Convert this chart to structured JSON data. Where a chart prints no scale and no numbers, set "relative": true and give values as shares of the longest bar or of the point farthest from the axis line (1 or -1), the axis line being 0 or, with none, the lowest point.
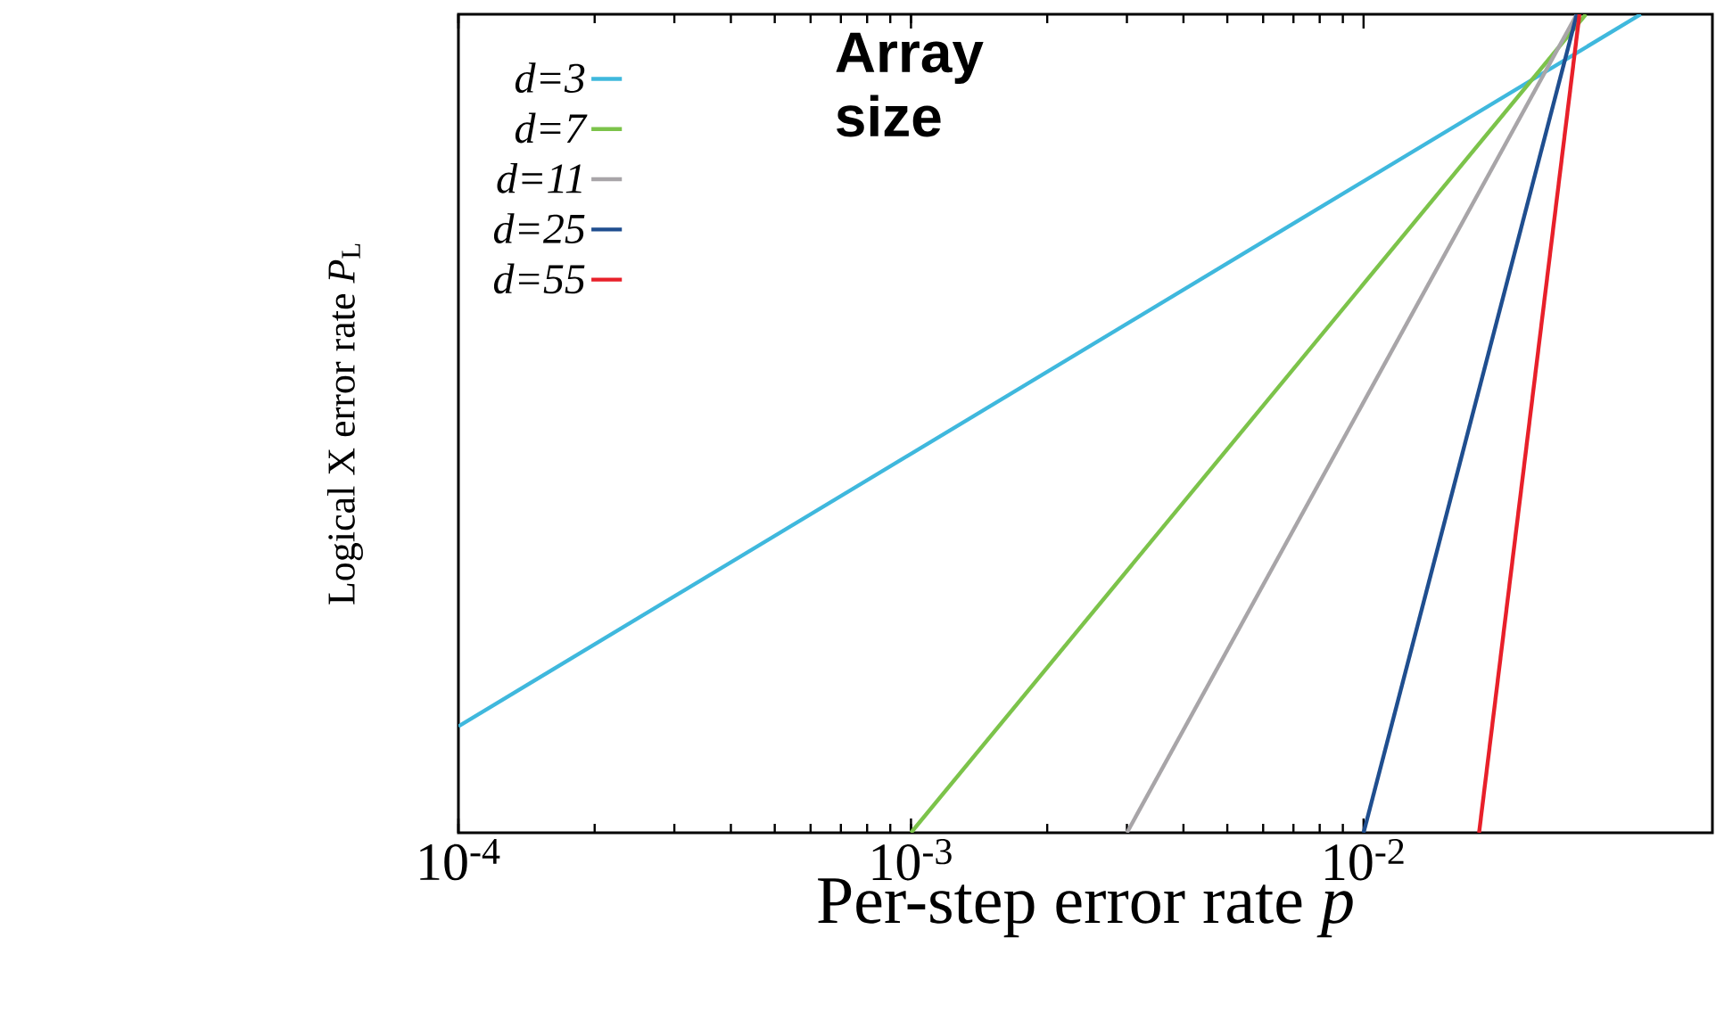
{
  "chart_data": {
    "type": "line",
    "relative": true,
    "log": "x",
    "xlabel": "Per-step error rate *p*",
    "ylabel": "Logical X error rate *P*$_{L}$",
    "legend_title": "Array size",
    "legend": "top left",
    "xlim": [
      0.0001,
      0.059
    ],
    "xticks": [
      {
        "value": 0.0001,
        "label": "10$^{-4}$"
      },
      {
        "value": 0.001,
        "label": "10$^{-3}$"
      },
      {
        "value": 0.01,
        "label": "10$^{-2}$"
      }
    ],
    "series": [
      {
        "name": "d=3",
        "color": "#3fb8dd",
        "x": [
          0.0001,
          0.041
        ],
        "values": [
          0.13,
          1
        ]
      },
      {
        "name": "d=7",
        "color": "#7cc34a",
        "x": [
          0.001,
          0.031
        ],
        "values": [
          0,
          1
        ]
      },
      {
        "name": "d=11",
        "color": "#a8a5a8",
        "x": [
          0.003,
          0.0296
        ],
        "values": [
          0,
          1
        ]
      },
      {
        "name": "d=25",
        "color": "#1f4e8f",
        "x": [
          0.01,
          0.0296
        ],
        "values": [
          0,
          1
        ]
      },
      {
        "name": "d=55",
        "color": "#e8202a",
        "x": [
          0.018,
          0.03
        ],
        "values": [
          0,
          1
        ]
      }
    ]
  }
}
